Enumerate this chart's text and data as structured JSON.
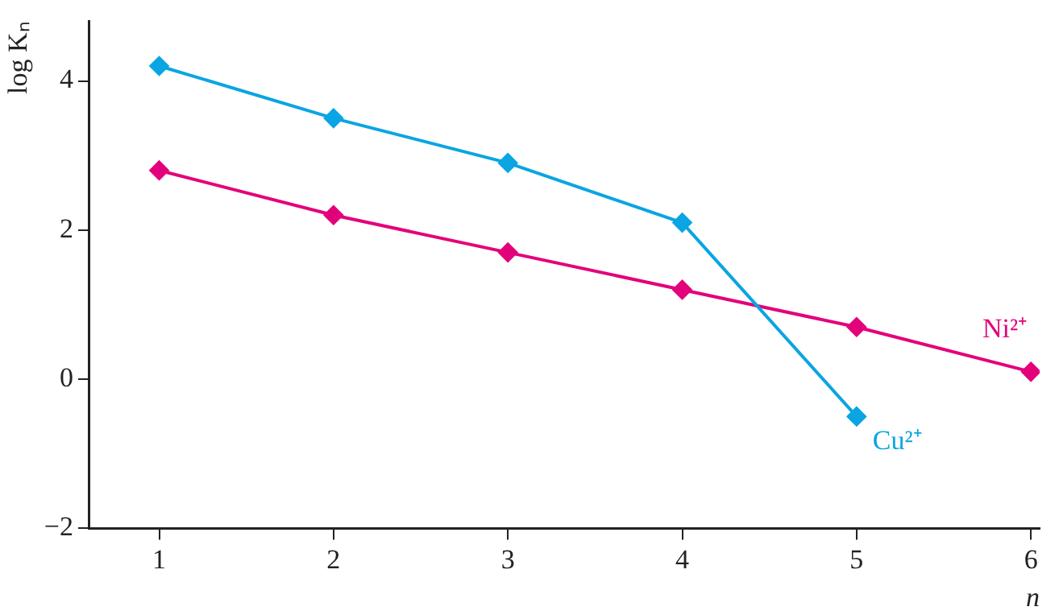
{
  "chart_data": {
    "type": "line",
    "xlabel": "n",
    "ylabel": "log Kₙ",
    "x": [
      1,
      2,
      3,
      4,
      5,
      6
    ],
    "series": [
      {
        "name": "Cu²⁺",
        "color": "#0aa5e2",
        "values": [
          4.2,
          3.5,
          2.9,
          2.1,
          -0.5,
          null
        ]
      },
      {
        "name": "Ni²⁺",
        "color": "#e3007b",
        "values": [
          2.8,
          2.2,
          1.7,
          1.2,
          0.7,
          0.1
        ]
      }
    ],
    "xlim": [
      0.6,
      6.05
    ],
    "xticks": [
      1,
      2,
      3,
      4,
      5,
      6
    ],
    "ylim": [
      -2,
      4.8
    ],
    "yticks": [
      -2,
      0,
      2,
      4
    ],
    "grid": false,
    "legend": false,
    "marker": "diamond",
    "line_style": "solid"
  }
}
